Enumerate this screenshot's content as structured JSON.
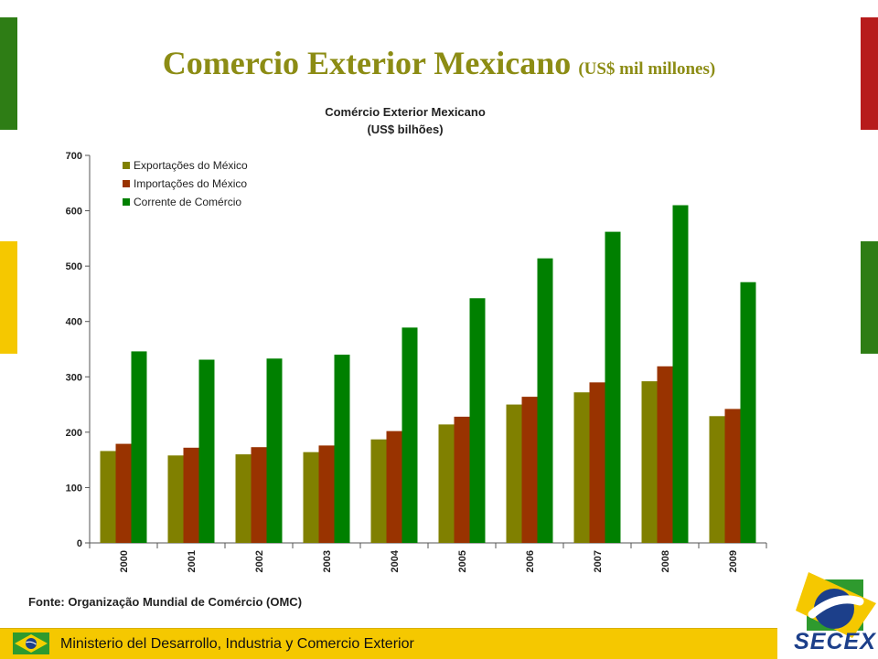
{
  "slide": {
    "title": "Comercio Exterior Mexicano",
    "title_unit": "(US$ mil millones)",
    "source": "Fonte: Organização Mundial de Comércio (OMC)",
    "footer": "Ministerio del Desarrollo, Industria y Comercio Exterior",
    "logo_text": "SECEX"
  },
  "colors": {
    "title": "#8c8c14",
    "footer_bg": "#f5c800",
    "accent_green": "#2e7d15",
    "accent_yellow": "#f5c800",
    "accent_red": "#b71c1c"
  },
  "chart_data": {
    "type": "bar",
    "title": "Comércio Exterior Mexicano",
    "subtitle": "(US$ bilhões)",
    "categories": [
      "2000",
      "2001",
      "2002",
      "2003",
      "2004",
      "2005",
      "2006",
      "2007",
      "2008",
      "2009"
    ],
    "series": [
      {
        "name": "Exportações do México",
        "color": "#808000",
        "values": [
          166,
          158,
          160,
          164,
          187,
          214,
          250,
          272,
          292,
          229
        ]
      },
      {
        "name": "Importações do México",
        "color": "#993300",
        "values": [
          179,
          172,
          173,
          176,
          202,
          228,
          264,
          290,
          319,
          242
        ]
      },
      {
        "name": "Corrente de Comércio",
        "color": "#008000",
        "values": [
          346,
          331,
          333,
          340,
          389,
          442,
          514,
          562,
          610,
          471
        ]
      }
    ],
    "ylim": [
      0,
      700
    ],
    "yticks": [
      0,
      100,
      200,
      300,
      400,
      500,
      600,
      700
    ],
    "xlabel": "",
    "ylabel": "",
    "grid": false,
    "legend_position": "top-left"
  }
}
